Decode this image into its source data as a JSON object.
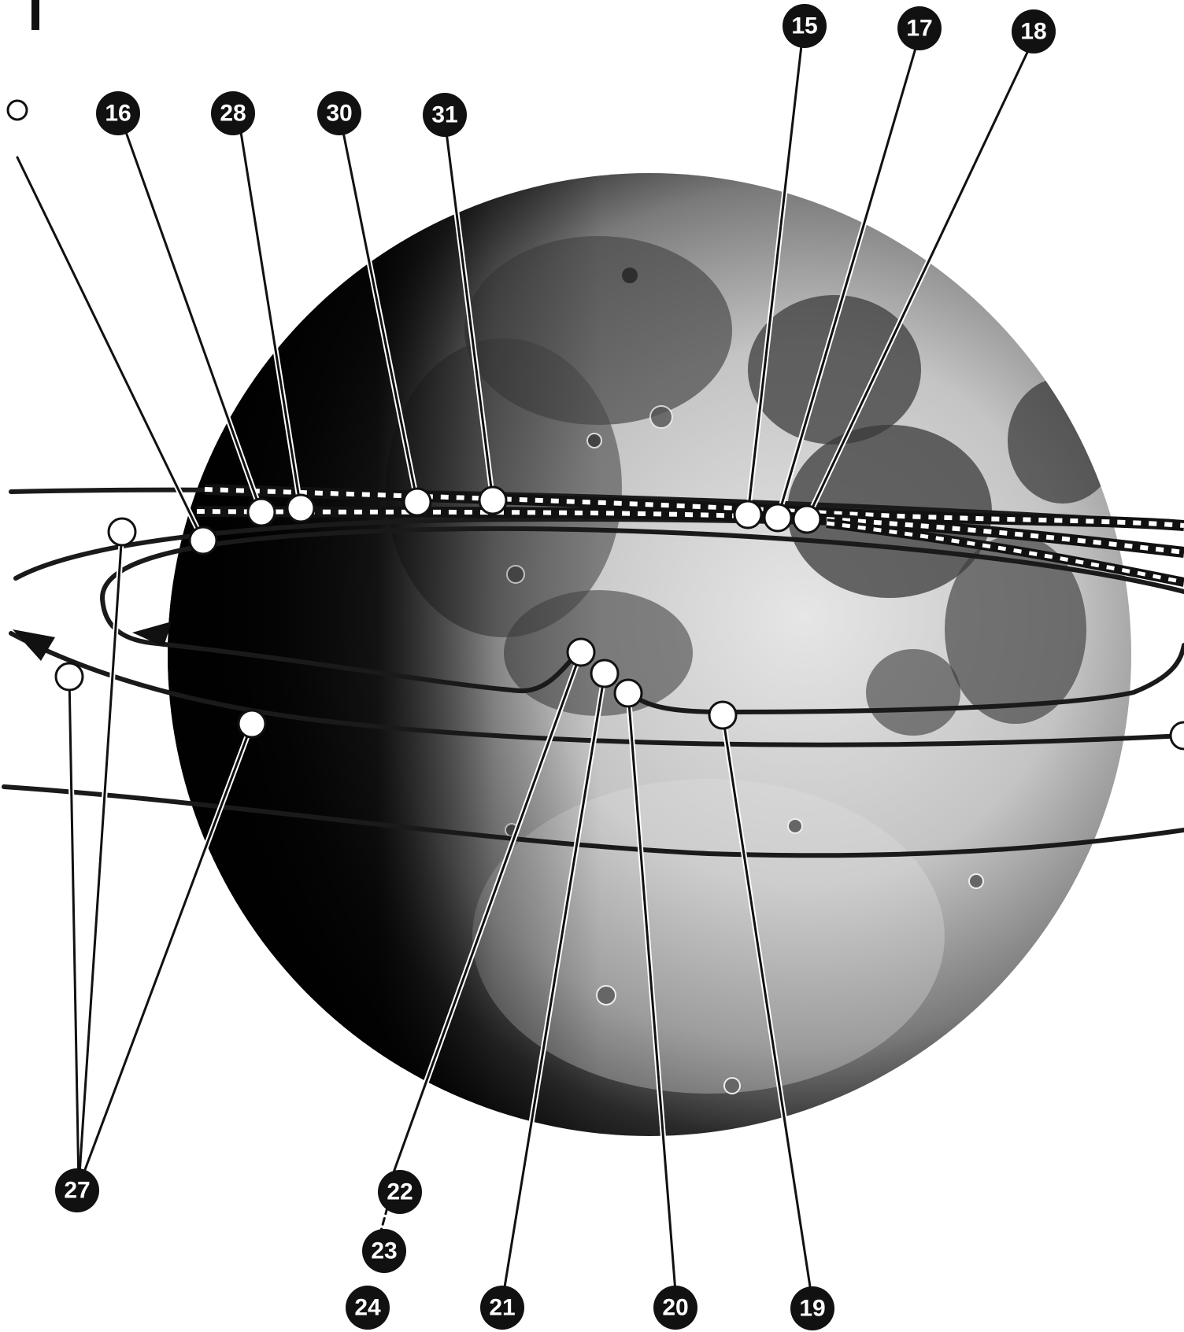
{
  "diagram": {
    "labels": {
      "n15": "15",
      "n16": "16",
      "n17": "17",
      "n18": "18",
      "n19": "19",
      "n20": "20",
      "n21": "21",
      "n22": "22",
      "n23": "23",
      "n24": "24",
      "n27": "27",
      "n28": "28",
      "n30": "30",
      "n31": "31"
    },
    "colors": {
      "background": "#ffffff",
      "moon_dark": "#0d0d0d",
      "moon_mid": "#6b6b6b",
      "moon_light": "#dadada",
      "orbit_line": "#1a1a1a",
      "marker_fill": "#ffffff",
      "badge_fill": "#111111"
    }
  }
}
